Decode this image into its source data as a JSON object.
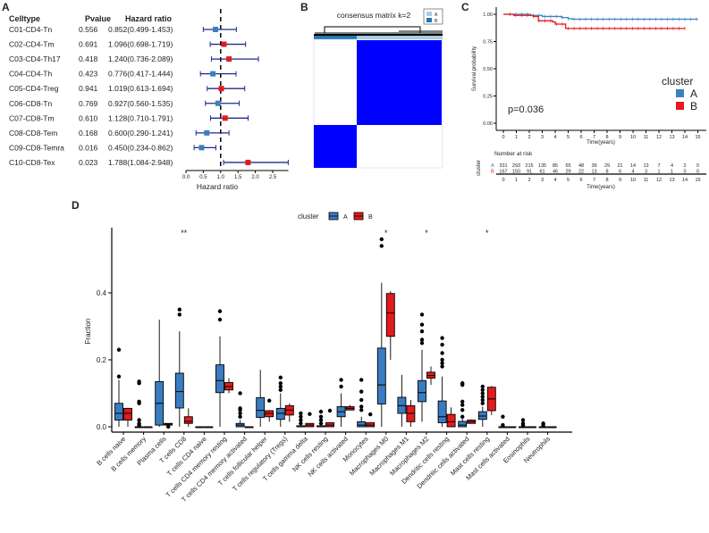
{
  "panel_labels": [
    "A",
    "B",
    "C",
    "D"
  ],
  "chart_data": [
    {
      "type": "forest",
      "panel": "A",
      "headers": [
        "Celltype",
        "Pvalue",
        "Hazard ratio"
      ],
      "rows": [
        {
          "celltype": "C01-CD4-Tn",
          "pvalue": "0.556",
          "hr_text": "0.852(0.499-1.453)",
          "hr": 0.852,
          "lo": 0.499,
          "hi": 1.453
        },
        {
          "celltype": "C02-CD4-Tm",
          "pvalue": "0.691",
          "hr_text": "1.096(0.698-1.719)",
          "hr": 1.096,
          "lo": 0.698,
          "hi": 1.719
        },
        {
          "celltype": "C03-CD4-Th17",
          "pvalue": "0.418",
          "hr_text": "1.240(0.736-2.089)",
          "hr": 1.24,
          "lo": 0.736,
          "hi": 2.089
        },
        {
          "celltype": "C04-CD4-Th",
          "pvalue": "0.423",
          "hr_text": "0.776(0.417-1.444)",
          "hr": 0.776,
          "lo": 0.417,
          "hi": 1.444
        },
        {
          "celltype": "C05-CD4-Treg",
          "pvalue": "0.941",
          "hr_text": "1.019(0.613-1.694)",
          "hr": 1.019,
          "lo": 0.613,
          "hi": 1.694
        },
        {
          "celltype": "C06-CD8-Tn",
          "pvalue": "0.769",
          "hr_text": "0.927(0.560-1.535)",
          "hr": 0.927,
          "lo": 0.56,
          "hi": 1.535
        },
        {
          "celltype": "C07-CD8-Tm",
          "pvalue": "0.610",
          "hr_text": "1.128(0.710-1.791)",
          "hr": 1.128,
          "lo": 0.71,
          "hi": 1.791
        },
        {
          "celltype": "C08-CD8-Tem",
          "pvalue": "0.168",
          "hr_text": "0.600(0.290-1.241)",
          "hr": 0.6,
          "lo": 0.29,
          "hi": 1.241
        },
        {
          "celltype": "C09-CD8-Temra",
          "pvalue": "0.016",
          "hr_text": "0.450(0.234-0.862)",
          "hr": 0.45,
          "lo": 0.234,
          "hi": 0.862
        },
        {
          "celltype": "C10-CD8-Tex",
          "pvalue": "0.023",
          "hr_text": "1.788(1.084-2.948)",
          "hr": 1.788,
          "lo": 1.084,
          "hi": 2.948
        }
      ],
      "xlabel": "Hazard ratio",
      "xticks": [
        "0.0",
        "0.5",
        "1.0",
        "1.5",
        "2.0",
        "2.5"
      ],
      "reference_line": 1.0,
      "colors": {
        "protective": "#3c7fc1",
        "risk": "#e41a1c",
        "ci": "#1f2a8c"
      }
    },
    {
      "type": "heatmap",
      "panel": "B",
      "title": "consensus matrix k=2",
      "legend": [
        "A",
        "B"
      ],
      "legend_colors": [
        "#a6cee3",
        "#1f78b4"
      ],
      "fill_color": "#0000ff"
    },
    {
      "type": "line",
      "panel": "C",
      "ylabel": "Survival probability",
      "xlabel": "Time(years)",
      "yticks": [
        "0.00",
        "0.25",
        "0.50",
        "0.75",
        "1.00"
      ],
      "xticks": [
        "0",
        "1",
        "2",
        "3",
        "4",
        "5",
        "6",
        "7",
        "8",
        "9",
        "10",
        "11",
        "12",
        "13",
        "14",
        "15"
      ],
      "annotation": "p=0.036",
      "legend_title": "cluster",
      "series": [
        {
          "name": "A",
          "color": "#3a80c2",
          "steps": [
            [
              0,
              1.0
            ],
            [
              2.1,
              0.99
            ],
            [
              3.0,
              0.98
            ],
            [
              4.5,
              0.97
            ],
            [
              5.0,
              0.96
            ],
            [
              5.3,
              0.955
            ],
            [
              15,
              0.955
            ]
          ]
        },
        {
          "name": "B",
          "color": "#e41a1c",
          "steps": [
            [
              0,
              1.0
            ],
            [
              0.8,
              0.99
            ],
            [
              2.3,
              0.98
            ],
            [
              2.7,
              0.94
            ],
            [
              3.8,
              0.93
            ],
            [
              4.0,
              0.91
            ],
            [
              4.8,
              0.87
            ],
            [
              14,
              0.87
            ]
          ]
        }
      ],
      "risk_table": {
        "title": "Number at risk",
        "ylabel": "cluster",
        "xlabel": "Time(years)",
        "rows": [
          {
            "name": "A",
            "values": [
              "331",
              "293",
              "215",
              "135",
              "85",
              "65",
              "48",
              "39",
              "29",
              "21",
              "14",
              "13",
              "7",
              "4",
              "2",
              "0"
            ]
          },
          {
            "name": "B",
            "values": [
              "167",
              "150",
              "91",
              "61",
              "46",
              "29",
              "22",
              "13",
              "8",
              "6",
              "4",
              "3",
              "1",
              "1",
              "0",
              "0"
            ]
          }
        ]
      }
    },
    {
      "type": "box",
      "panel": "D",
      "ylabel": "Fraction",
      "yticks": [
        "0.0",
        "0.2",
        "0.4"
      ],
      "legend_title": "cluster",
      "series_names": [
        "A",
        "B"
      ],
      "colors": {
        "A": "#3a7cc0",
        "B": "#e41a1c"
      },
      "categories": [
        "B cells naive",
        "B cells memory",
        "Plasma cells",
        "T cells CD8",
        "T cells CD4 naive",
        "T cells CD4 memory resting",
        "T cells CD4 memory activated",
        "T cells follicular helper",
        "T cells regulatory (Tregs)",
        "T cells gamma delta",
        "NK cells resting",
        "NK cells activated",
        "Monocytes",
        "Macrophages M0",
        "Macrophages M1",
        "Macrophages M2",
        "Dendritic cells resting",
        "Dendritic cells activated",
        "Mast cells resting",
        "Mast cells activated",
        "Eosinophils",
        "Neutrophils"
      ],
      "significance": [
        "",
        "",
        "",
        "**",
        "",
        "",
        "",
        "",
        "",
        "",
        "",
        "",
        "",
        "*",
        "",
        "*",
        "",
        "",
        "*",
        "",
        "",
        ""
      ],
      "boxes": [
        {
          "A": {
            "lo": 0,
            "q1": 0.02,
            "med": 0.04,
            "q3": 0.07,
            "hi": 0.14,
            "out": [
              0.15,
              0.23
            ]
          },
          "B": {
            "lo": 0,
            "q1": 0.02,
            "med": 0.04,
            "q3": 0.055,
            "hi": 0.055,
            "out": []
          }
        },
        {
          "A": {
            "lo": 0,
            "q1": 0,
            "med": 0,
            "q3": 0,
            "hi": 0,
            "out": [
              0.005,
              0.01,
              0.02,
              0.07,
              0.075,
              0.13,
              0.135
            ]
          },
          "B": {
            "lo": 0,
            "q1": 0,
            "med": 0,
            "q3": 0,
            "hi": 0,
            "out": []
          }
        },
        {
          "A": {
            "lo": 0,
            "q1": 0.005,
            "med": 0.07,
            "q3": 0.135,
            "hi": 0.32,
            "out": []
          },
          "B": {
            "lo": 0,
            "q1": 0.005,
            "med": 0.008,
            "q3": 0.01,
            "hi": 0.01,
            "out": [
              0
            ]
          }
        },
        {
          "A": {
            "lo": 0,
            "q1": 0.056,
            "med": 0.105,
            "q3": 0.16,
            "hi": 0.285,
            "out": [
              0.335,
              0.35
            ]
          },
          "B": {
            "lo": 0,
            "q1": 0.01,
            "med": 0.016,
            "q3": 0.03,
            "hi": 0.055,
            "out": []
          }
        },
        {
          "A": {
            "lo": 0,
            "q1": 0,
            "med": 0,
            "q3": 0,
            "hi": 0,
            "out": []
          },
          "B": {
            "lo": 0,
            "q1": 0,
            "med": 0,
            "q3": 0,
            "hi": 0,
            "out": []
          }
        },
        {
          "A": {
            "lo": 0,
            "q1": 0.102,
            "med": 0.138,
            "q3": 0.185,
            "hi": 0.27,
            "out": [
              0.32,
              0.345
            ]
          },
          "B": {
            "lo": 0.1,
            "q1": 0.11,
            "med": 0.12,
            "q3": 0.132,
            "hi": 0.145,
            "out": []
          }
        },
        {
          "A": {
            "lo": 0,
            "q1": 0,
            "med": 0.005,
            "q3": 0.01,
            "hi": 0.02,
            "out": [
              0.03,
              0.04,
              0.05,
              0.055,
              0.1
            ]
          },
          "B": {
            "lo": 0,
            "q1": 0,
            "med": 0,
            "q3": 0,
            "hi": 0,
            "out": []
          }
        },
        {
          "A": {
            "lo": 0,
            "q1": 0.028,
            "med": 0.049,
            "q3": 0.087,
            "hi": 0.17,
            "out": []
          },
          "B": {
            "lo": 0.015,
            "q1": 0.03,
            "med": 0.04,
            "q3": 0.048,
            "hi": 0.05,
            "out": [
              0.078
            ]
          }
        },
        {
          "A": {
            "lo": 0,
            "q1": 0.022,
            "med": 0.04,
            "q3": 0.055,
            "hi": 0.1,
            "out": [
              0.11,
              0.12,
              0.13,
              0.147
            ]
          },
          "B": {
            "lo": 0.015,
            "q1": 0.035,
            "med": 0.05,
            "q3": 0.063,
            "hi": 0.07,
            "out": []
          }
        },
        {
          "A": {
            "lo": 0,
            "q1": 0,
            "med": 0,
            "q3": 0.003,
            "hi": 0.005,
            "out": [
              0.01,
              0.02,
              0.03,
              0.04
            ]
          },
          "B": {
            "lo": 0,
            "q1": 0,
            "med": 0.005,
            "q3": 0.01,
            "hi": 0.01,
            "out": [
              0.038
            ]
          }
        },
        {
          "A": {
            "lo": 0,
            "q1": 0,
            "med": 0,
            "q3": 0.003,
            "hi": 0.005,
            "out": [
              0.01,
              0.02,
              0.03,
              0.045
            ]
          },
          "B": {
            "lo": 0,
            "q1": 0,
            "med": 0.005,
            "q3": 0.012,
            "hi": 0.012,
            "out": [
              0.048
            ]
          }
        },
        {
          "A": {
            "lo": 0,
            "q1": 0.03,
            "med": 0.045,
            "q3": 0.06,
            "hi": 0.1,
            "out": [
              0.12,
              0.14
            ]
          },
          "B": {
            "lo": 0.05,
            "q1": 0.05,
            "med": 0.055,
            "q3": 0.06,
            "hi": 0.065,
            "out": []
          }
        },
        {
          "A": {
            "lo": 0,
            "q1": 0,
            "med": 0.005,
            "q3": 0.015,
            "hi": 0.03,
            "out": [
              0.05,
              0.06,
              0.08,
              0.105,
              0.14
            ]
          },
          "B": {
            "lo": 0,
            "q1": 0,
            "med": 0.005,
            "q3": 0.012,
            "hi": 0.012,
            "out": [
              0.037
            ]
          }
        },
        {
          "A": {
            "lo": 0,
            "q1": 0.068,
            "med": 0.125,
            "q3": 0.235,
            "hi": 0.43,
            "out": [
              0.54,
              0.56
            ]
          },
          "B": {
            "lo": 0.2,
            "q1": 0.27,
            "med": 0.34,
            "q3": 0.398,
            "hi": 0.405,
            "out": []
          }
        },
        {
          "A": {
            "lo": 0,
            "q1": 0.04,
            "med": 0.063,
            "q3": 0.088,
            "hi": 0.155,
            "out": []
          },
          "B": {
            "lo": 0,
            "q1": 0.015,
            "med": 0.04,
            "q3": 0.063,
            "hi": 0.08,
            "out": []
          }
        },
        {
          "A": {
            "lo": 0.015,
            "q1": 0.075,
            "med": 0.102,
            "q3": 0.138,
            "hi": 0.23,
            "out": [
              0.25,
              0.26,
              0.285,
              0.305,
              0.335
            ]
          },
          "B": {
            "lo": 0.125,
            "q1": 0.145,
            "med": 0.153,
            "q3": 0.163,
            "hi": 0.18,
            "out": []
          }
        },
        {
          "A": {
            "lo": 0,
            "q1": 0.012,
            "med": 0.03,
            "q3": 0.077,
            "hi": 0.15,
            "out": [
              0.18,
              0.19,
              0.2,
              0.22,
              0.245,
              0.265
            ]
          },
          "B": {
            "lo": 0,
            "q1": 0,
            "med": 0.015,
            "q3": 0.037,
            "hi": 0.058,
            "out": []
          }
        },
        {
          "A": {
            "lo": 0,
            "q1": 0,
            "med": 0.005,
            "q3": 0.016,
            "hi": 0.025,
            "out": [
              0.03,
              0.05,
              0.065,
              0.075,
              0.125,
              0.13
            ]
          },
          "B": {
            "lo": 0.01,
            "q1": 0.01,
            "med": 0.015,
            "q3": 0.02,
            "hi": 0.022,
            "out": []
          }
        },
        {
          "A": {
            "lo": 0,
            "q1": 0.022,
            "med": 0.032,
            "q3": 0.045,
            "hi": 0.06,
            "out": [
              0.07,
              0.08,
              0.09,
              0.1,
              0.11,
              0.12
            ]
          },
          "B": {
            "lo": 0.035,
            "q1": 0.048,
            "med": 0.083,
            "q3": 0.118,
            "hi": 0.122,
            "out": []
          }
        },
        {
          "A": {
            "lo": 0,
            "q1": 0,
            "med": 0,
            "q3": 0,
            "hi": 0,
            "out": [
              0.005,
              0.03
            ]
          },
          "B": {
            "lo": 0,
            "q1": 0,
            "med": 0,
            "q3": 0,
            "hi": 0,
            "out": []
          }
        },
        {
          "A": {
            "lo": 0,
            "q1": 0,
            "med": 0,
            "q3": 0,
            "hi": 0,
            "out": [
              0.005,
              0.01,
              0.02
            ]
          },
          "B": {
            "lo": 0,
            "q1": 0,
            "med": 0,
            "q3": 0,
            "hi": 0,
            "out": []
          }
        },
        {
          "A": {
            "lo": 0,
            "q1": 0,
            "med": 0,
            "q3": 0,
            "hi": 0,
            "out": [
              0.005,
              0.01
            ]
          },
          "B": {
            "lo": 0,
            "q1": 0,
            "med": 0,
            "q3": 0,
            "hi": 0,
            "out": []
          }
        }
      ]
    }
  ]
}
